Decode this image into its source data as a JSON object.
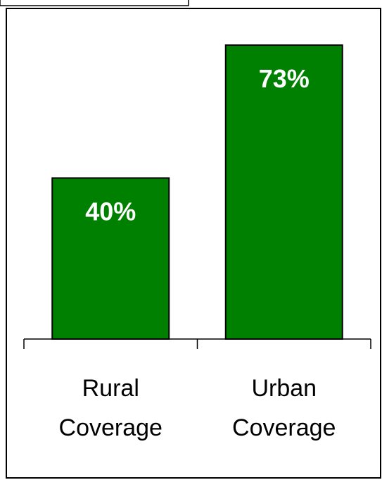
{
  "chart_data": {
    "type": "bar",
    "categories": [
      [
        "Rural",
        "Coverage"
      ],
      [
        "Urban",
        "Coverage"
      ]
    ],
    "values": [
      40,
      73
    ],
    "data_labels": [
      "40%",
      "73%"
    ],
    "title": "",
    "xlabel": "",
    "ylabel": "",
    "ylim": [
      0,
      80
    ],
    "grid": false,
    "legend": "none",
    "bar_color": "#008000",
    "label_color": "#ffffff"
  }
}
